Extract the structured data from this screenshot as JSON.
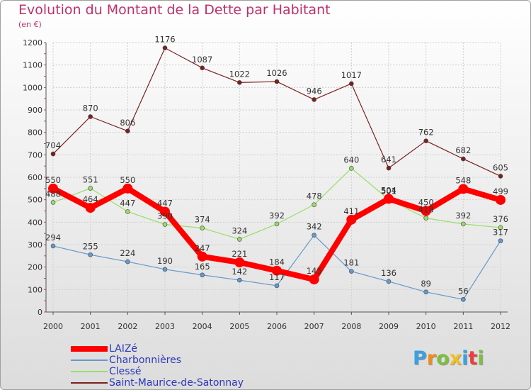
{
  "chart_data": {
    "type": "line",
    "title": "Evolution du Montant de la Dette par Habitant",
    "unit_label": "(en €)",
    "xlabel": "",
    "ylabel": "",
    "x": [
      "2000",
      "2001",
      "2002",
      "2003",
      "2004",
      "2005",
      "2006",
      "2007",
      "2008",
      "2009",
      "2010",
      "2011",
      "2012"
    ],
    "ylim": [
      0,
      1200
    ],
    "yticks": [
      "0",
      "100",
      "200",
      "300",
      "400",
      "500",
      "600",
      "700",
      "800",
      "900",
      "1000",
      "1100",
      "1200"
    ],
    "grid": true,
    "legend_position": "bottom-left",
    "series": [
      {
        "name": "LAIZé",
        "color": "#ff0000",
        "values": [
          550,
          464,
          550,
          447,
          247,
          221,
          184,
          145,
          411,
          504,
          450,
          548,
          499
        ]
      },
      {
        "name": "Charbonnières",
        "color": "#6699cc",
        "values": [
          294,
          255,
          224,
          190,
          165,
          142,
          117,
          342,
          181,
          136,
          89,
          56,
          317
        ]
      },
      {
        "name": "Clessé",
        "color": "#99dd66",
        "values": [
          488,
          551,
          447,
          390,
          374,
          324,
          392,
          478,
          640,
          501,
          418,
          392,
          376
        ]
      },
      {
        "name": "Saint-Maurice-de-Satonnay",
        "color": "#7a2020",
        "values": [
          704,
          870,
          806,
          1176,
          1087,
          1022,
          1026,
          946,
          1017,
          641,
          762,
          682,
          605
        ]
      }
    ]
  },
  "logo": {
    "letters": [
      "P",
      "r",
      "o",
      "x",
      "i",
      "t",
      "i"
    ],
    "colors": [
      "#3aa0e0",
      "#f08a20",
      "#7cc040",
      "#f0c020",
      "#3aa0e0",
      "#e84040",
      "#7cc040"
    ]
  }
}
